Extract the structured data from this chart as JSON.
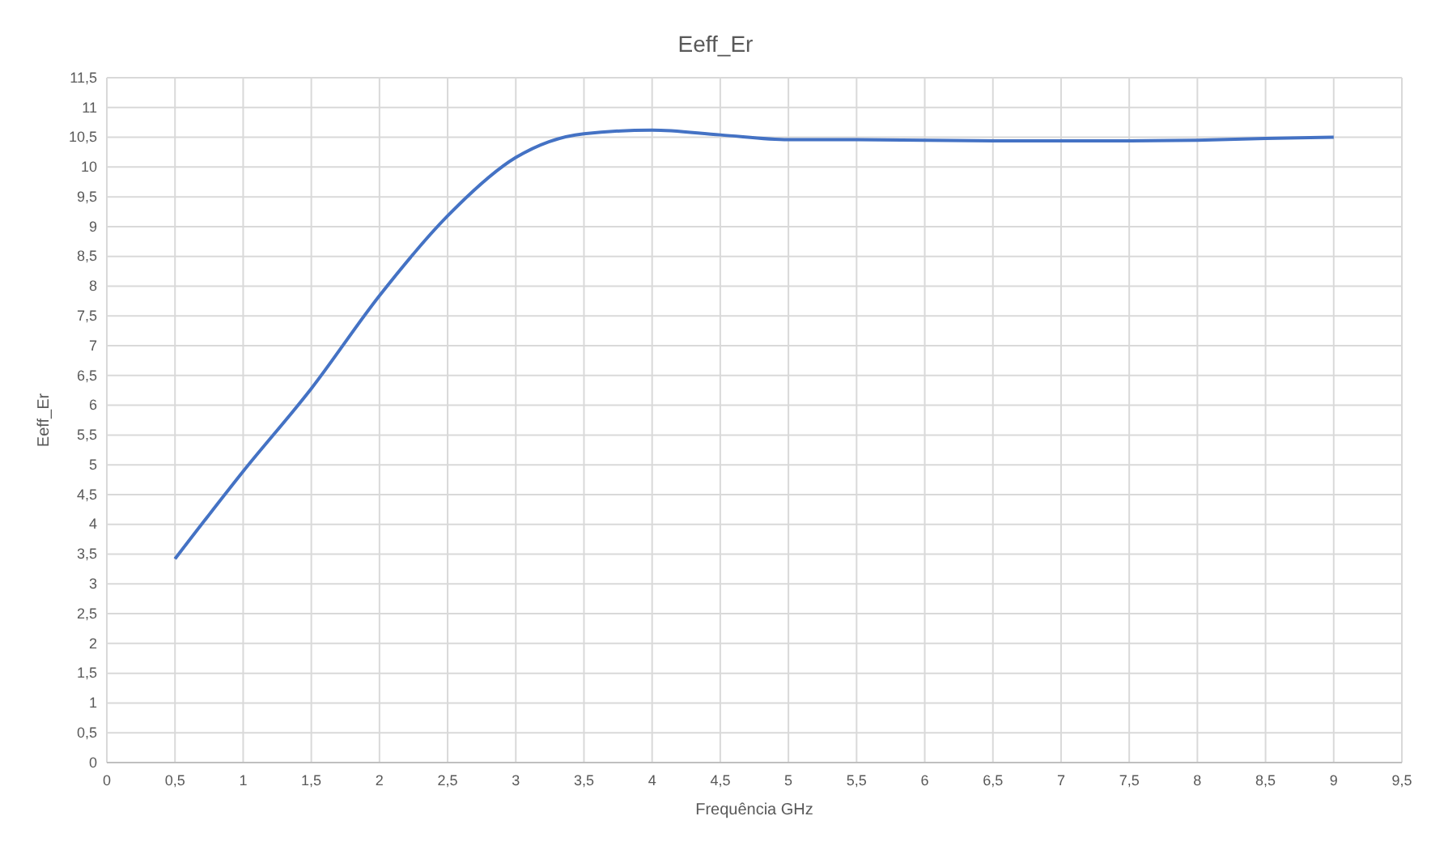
{
  "chart_data": {
    "type": "line",
    "title": "Eeff_Er",
    "xlabel": "Frequência GHz",
    "ylabel": "Eeff_Er",
    "x": [
      0.5,
      1,
      1.5,
      2,
      2.5,
      3,
      3.5,
      4,
      4.5,
      5,
      5.5,
      6,
      6.5,
      7,
      7.5,
      8,
      8.5,
      9
    ],
    "series": [
      {
        "color": "#4472c4",
        "values": [
          3.42,
          4.89,
          6.28,
          7.84,
          9.18,
          10.16,
          10.56,
          10.62,
          10.54,
          10.46,
          10.46,
          10.45,
          10.44,
          10.44,
          10.44,
          10.45,
          10.48,
          10.5
        ]
      }
    ],
    "xlim": [
      0,
      9.5
    ],
    "xticks": [
      {
        "value": 0,
        "label": "0"
      },
      {
        "value": 0.5,
        "label": "0,5"
      },
      {
        "value": 1,
        "label": "1"
      },
      {
        "value": 1.5,
        "label": "1,5"
      },
      {
        "value": 2,
        "label": "2"
      },
      {
        "value": 2.5,
        "label": "2,5"
      },
      {
        "value": 3,
        "label": "3"
      },
      {
        "value": 3.5,
        "label": "3,5"
      },
      {
        "value": 4,
        "label": "4"
      },
      {
        "value": 4.5,
        "label": "4,5"
      },
      {
        "value": 5,
        "label": "5"
      },
      {
        "value": 5.5,
        "label": "5,5"
      },
      {
        "value": 6,
        "label": "6"
      },
      {
        "value": 6.5,
        "label": "6,5"
      },
      {
        "value": 7,
        "label": "7"
      },
      {
        "value": 7.5,
        "label": "7,5"
      },
      {
        "value": 8,
        "label": "8"
      },
      {
        "value": 8.5,
        "label": "8,5"
      },
      {
        "value": 9,
        "label": "9"
      },
      {
        "value": 9.5,
        "label": "9,5"
      }
    ],
    "ylim": [
      0,
      11.5
    ],
    "yticks": [
      {
        "value": 0,
        "label": "0"
      },
      {
        "value": 0.5,
        "label": "0,5"
      },
      {
        "value": 1,
        "label": "1"
      },
      {
        "value": 1.5,
        "label": "1,5"
      },
      {
        "value": 2,
        "label": "2"
      },
      {
        "value": 2.5,
        "label": "2,5"
      },
      {
        "value": 3,
        "label": "3"
      },
      {
        "value": 3.5,
        "label": "3,5"
      },
      {
        "value": 4,
        "label": "4"
      },
      {
        "value": 4.5,
        "label": "4,5"
      },
      {
        "value": 5,
        "label": "5"
      },
      {
        "value": 5.5,
        "label": "5,5"
      },
      {
        "value": 6,
        "label": "6"
      },
      {
        "value": 6.5,
        "label": "6,5"
      },
      {
        "value": 7,
        "label": "7"
      },
      {
        "value": 7.5,
        "label": "7,5"
      },
      {
        "value": 8,
        "label": "8"
      },
      {
        "value": 8.5,
        "label": "8,5"
      },
      {
        "value": 9,
        "label": "9"
      },
      {
        "value": 9.5,
        "label": "9,5"
      },
      {
        "value": 10,
        "label": "10"
      },
      {
        "value": 10.5,
        "label": "10,5"
      },
      {
        "value": 11,
        "label": "11"
      },
      {
        "value": 11.5,
        "label": "11,5"
      }
    ],
    "grid": true,
    "marker": "none",
    "line_style": "solid"
  }
}
